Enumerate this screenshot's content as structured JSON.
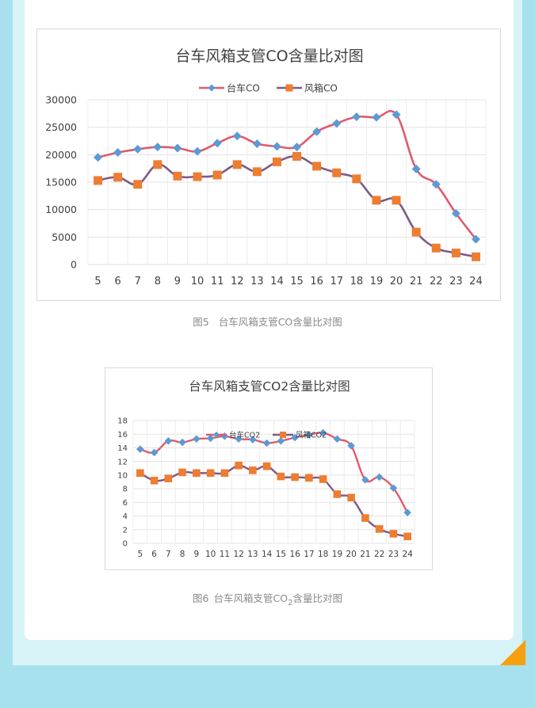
{
  "chart_data": [
    {
      "type": "line",
      "title": "台车风箱支管CO含量比对图",
      "x": [
        5,
        6,
        7,
        8,
        9,
        10,
        11,
        12,
        13,
        14,
        15,
        16,
        17,
        18,
        19,
        20,
        21,
        22,
        23,
        24
      ],
      "ylim": [
        0,
        30000
      ],
      "yticks": [
        0,
        5000,
        10000,
        15000,
        20000,
        25000,
        30000
      ],
      "grid": true,
      "legend": "top-center",
      "series": [
        {
          "name": "台车CO",
          "color": "#e05a6d",
          "marker": "diamond",
          "marker_color": "#5b9bd5",
          "values": [
            19500,
            20400,
            21000,
            21400,
            21200,
            20600,
            22100,
            23400,
            22000,
            21500,
            21400,
            24200,
            25700,
            26900,
            26800,
            27300,
            17400,
            14600,
            9300,
            4600
          ]
        },
        {
          "name": "风箱CO",
          "color": "#7d5b86",
          "marker": "square",
          "marker_color": "#ed7d31",
          "values": [
            15300,
            15900,
            14600,
            18200,
            16100,
            16000,
            16300,
            18200,
            16900,
            18700,
            19700,
            17900,
            16700,
            15600,
            11700,
            11700,
            5900,
            3000,
            2100,
            1400
          ]
        }
      ]
    },
    {
      "type": "line",
      "title": "台车风箱支管CO2含量比对图",
      "x": [
        5,
        6,
        7,
        8,
        9,
        10,
        11,
        12,
        13,
        14,
        15,
        16,
        17,
        18,
        19,
        20,
        21,
        22,
        23,
        24
      ],
      "ylim": [
        0,
        18
      ],
      "yticks": [
        0,
        2,
        4,
        6,
        8,
        10,
        12,
        14,
        16,
        18
      ],
      "grid": true,
      "legend": "top-center",
      "series": [
        {
          "name": "台车CO2",
          "color": "#e05a6d",
          "marker": "diamond",
          "marker_color": "#5b9bd5",
          "values": [
            13.8,
            13.3,
            15.0,
            14.8,
            15.3,
            15.4,
            15.7,
            15.3,
            15.2,
            14.7,
            15.0,
            15.5,
            15.9,
            16.2,
            15.3,
            14.3,
            9.3,
            9.7,
            8.1,
            4.5
          ]
        },
        {
          "name": "风箱CO2",
          "color": "#7d5b86",
          "marker": "square",
          "marker_color": "#ed7d31",
          "values": [
            10.3,
            9.2,
            9.5,
            10.4,
            10.3,
            10.3,
            10.3,
            11.4,
            10.7,
            11.3,
            9.8,
            9.7,
            9.6,
            9.4,
            7.2,
            6.7,
            3.7,
            2.1,
            1.4,
            1.0
          ]
        }
      ]
    }
  ],
  "captions": {
    "fig5_label": "图5",
    "fig5_text": "台车风箱支管CO含量比对图",
    "fig6_label": "图6",
    "fig6_text_a": "台车风箱支管CO",
    "fig6_sub": "2",
    "fig6_text_b": "含量比对图"
  },
  "colors": {
    "background": "#a8e1ee",
    "frame": "#d8f3f7",
    "card": "#ffffff",
    "corner_accent": "#f5a10f"
  }
}
